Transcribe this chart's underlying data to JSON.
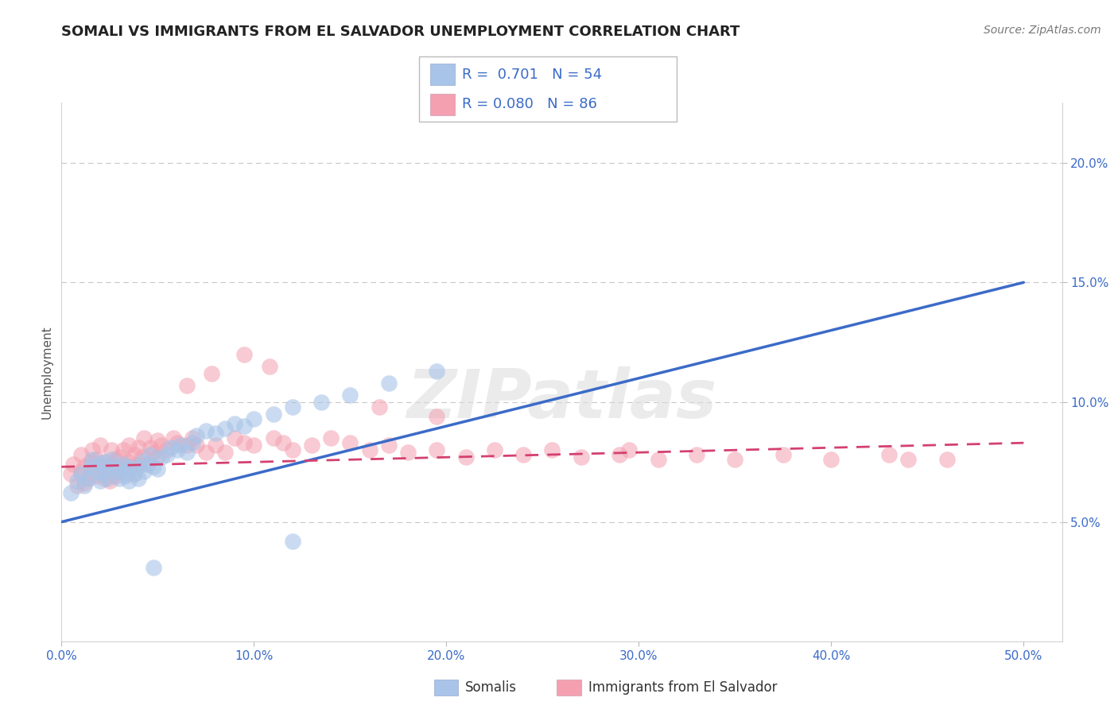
{
  "title": "SOMALI VS IMMIGRANTS FROM EL SALVADOR UNEMPLOYMENT CORRELATION CHART",
  "source": "Source: ZipAtlas.com",
  "ylabel_label": "Unemployment",
  "xlim": [
    0.0,
    0.52
  ],
  "ylim": [
    0.0,
    0.225
  ],
  "xtick_vals": [
    0.0,
    0.1,
    0.2,
    0.3,
    0.4,
    0.5
  ],
  "xtick_labels": [
    "0.0%",
    "10.0%",
    "20.0%",
    "30.0%",
    "40.0%",
    "50.0%"
  ],
  "ytick_vals": [
    0.05,
    0.1,
    0.15,
    0.2
  ],
  "ytick_labels": [
    "5.0%",
    "10.0%",
    "15.0%",
    "20.0%"
  ],
  "watermark": "ZIPatlas",
  "legend_r_blue": "0.701",
  "legend_n_blue": "54",
  "legend_r_pink": "0.080",
  "legend_n_pink": "86",
  "blue_scatter_color": "#A8C4E8",
  "pink_scatter_color": "#F4A0B0",
  "blue_line_color": "#3B6BC8",
  "pink_line_color": "#D44070",
  "blue_scatter_x": [
    0.005,
    0.008,
    0.01,
    0.012,
    0.014,
    0.015,
    0.016,
    0.018,
    0.02,
    0.02,
    0.022,
    0.022,
    0.024,
    0.025,
    0.026,
    0.028,
    0.03,
    0.03,
    0.032,
    0.033,
    0.034,
    0.035,
    0.036,
    0.038,
    0.04,
    0.04,
    0.042,
    0.043,
    0.045,
    0.046,
    0.048,
    0.05,
    0.052,
    0.055,
    0.057,
    0.06,
    0.062,
    0.065,
    0.068,
    0.07,
    0.075,
    0.08,
    0.085,
    0.09,
    0.095,
    0.1,
    0.11,
    0.12,
    0.135,
    0.15,
    0.17,
    0.195,
    0.12,
    0.048
  ],
  "blue_scatter_y": [
    0.062,
    0.067,
    0.07,
    0.065,
    0.068,
    0.073,
    0.076,
    0.071,
    0.067,
    0.074,
    0.07,
    0.075,
    0.068,
    0.072,
    0.076,
    0.073,
    0.068,
    0.071,
    0.074,
    0.069,
    0.073,
    0.067,
    0.072,
    0.07,
    0.068,
    0.073,
    0.075,
    0.071,
    0.074,
    0.078,
    0.073,
    0.072,
    0.077,
    0.078,
    0.081,
    0.08,
    0.082,
    0.079,
    0.083,
    0.086,
    0.088,
    0.087,
    0.089,
    0.091,
    0.09,
    0.093,
    0.095,
    0.098,
    0.1,
    0.103,
    0.108,
    0.113,
    0.042,
    0.031
  ],
  "pink_scatter_x": [
    0.005,
    0.006,
    0.008,
    0.01,
    0.01,
    0.012,
    0.012,
    0.014,
    0.015,
    0.016,
    0.018,
    0.018,
    0.02,
    0.02,
    0.022,
    0.022,
    0.024,
    0.025,
    0.025,
    0.026,
    0.027,
    0.028,
    0.028,
    0.03,
    0.03,
    0.032,
    0.032,
    0.034,
    0.035,
    0.035,
    0.036,
    0.038,
    0.038,
    0.04,
    0.04,
    0.042,
    0.043,
    0.045,
    0.046,
    0.048,
    0.05,
    0.05,
    0.052,
    0.055,
    0.058,
    0.06,
    0.065,
    0.068,
    0.07,
    0.075,
    0.08,
    0.085,
    0.09,
    0.095,
    0.1,
    0.11,
    0.115,
    0.12,
    0.13,
    0.14,
    0.15,
    0.16,
    0.17,
    0.18,
    0.195,
    0.21,
    0.225,
    0.24,
    0.255,
    0.27,
    0.29,
    0.31,
    0.33,
    0.35,
    0.375,
    0.4,
    0.43,
    0.46,
    0.108,
    0.095,
    0.065,
    0.078,
    0.165,
    0.195,
    0.295,
    0.44
  ],
  "pink_scatter_y": [
    0.07,
    0.074,
    0.065,
    0.071,
    0.078,
    0.066,
    0.073,
    0.068,
    0.075,
    0.08,
    0.069,
    0.076,
    0.072,
    0.082,
    0.068,
    0.075,
    0.071,
    0.067,
    0.074,
    0.08,
    0.073,
    0.069,
    0.076,
    0.071,
    0.077,
    0.073,
    0.08,
    0.07,
    0.075,
    0.082,
    0.073,
    0.07,
    0.078,
    0.074,
    0.081,
    0.077,
    0.085,
    0.074,
    0.081,
    0.079,
    0.077,
    0.084,
    0.082,
    0.08,
    0.085,
    0.083,
    0.082,
    0.085,
    0.082,
    0.079,
    0.082,
    0.079,
    0.085,
    0.083,
    0.082,
    0.085,
    0.083,
    0.08,
    0.082,
    0.085,
    0.083,
    0.08,
    0.082,
    0.079,
    0.08,
    0.077,
    0.08,
    0.078,
    0.08,
    0.077,
    0.078,
    0.076,
    0.078,
    0.076,
    0.078,
    0.076,
    0.078,
    0.076,
    0.115,
    0.12,
    0.107,
    0.112,
    0.098,
    0.094,
    0.08,
    0.076
  ],
  "blue_line_x": [
    0.0,
    0.5
  ],
  "blue_line_y": [
    0.05,
    0.15
  ],
  "pink_line_x": [
    0.0,
    0.5
  ],
  "pink_line_y": [
    0.073,
    0.083
  ],
  "grid_color": "#C8C8C8",
  "background_color": "#FFFFFF",
  "title_fontsize": 13,
  "axis_label_fontsize": 11,
  "tick_fontsize": 11,
  "tick_color": "#3B6BC8",
  "legend_fontsize": 13,
  "legend_text_color": "#333333",
  "legend_number_color": "#3B6BC8"
}
